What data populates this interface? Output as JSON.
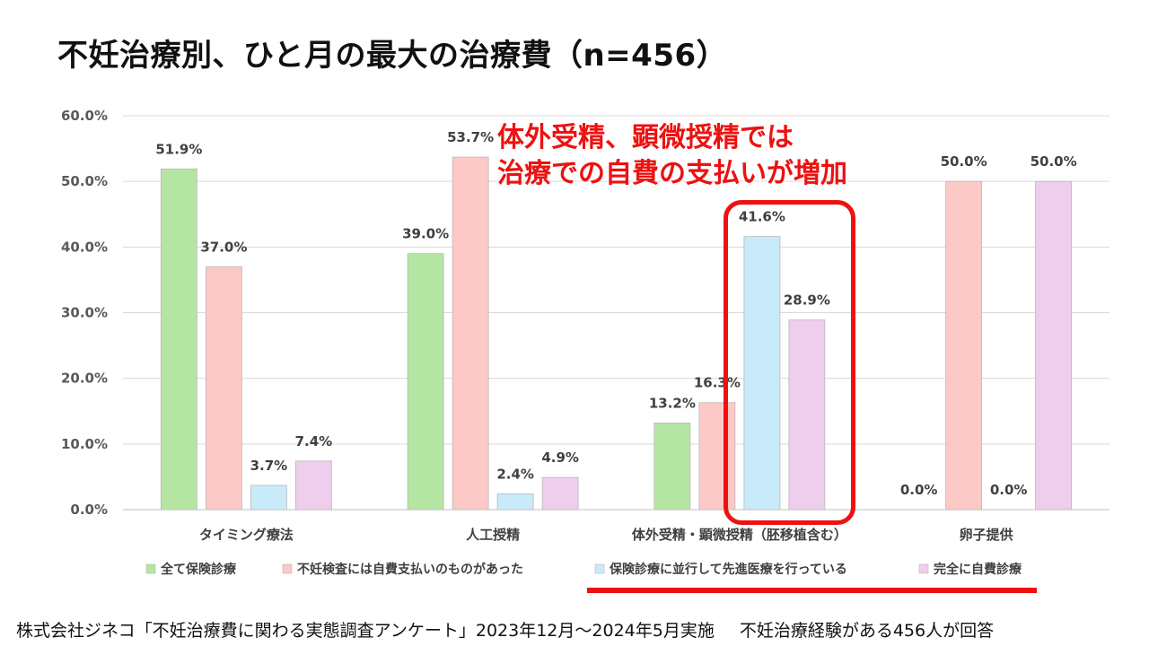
{
  "title": "不妊治療別、ひと月の最大の治療費（n=456）",
  "callout": {
    "line1": "体外受精、顕微授精では",
    "line2": "治療での自費の支払いが増加"
  },
  "footer": {
    "source": "株式会社ジネコ「不妊治療費に関わる実態調査アンケート」2023年12月～2024年5月実施",
    "note": "不妊治療経験がある456人が回答"
  },
  "chart_data": {
    "type": "bar",
    "categories": [
      "タイミング療法",
      "人工授精",
      "体外受精・顕微授精（胚移植含む）",
      "卵子提供"
    ],
    "series": [
      {
        "name": "全て保険診療",
        "values": [
          51.9,
          39.0,
          13.2,
          0.0
        ],
        "labels": [
          "51.9%",
          "39.0%",
          "13.2%",
          "0.0%"
        ],
        "color": "#b5e5a3"
      },
      {
        "name": "不妊検査には自費支払いのものがあった",
        "values": [
          37.0,
          53.7,
          16.3,
          50.0
        ],
        "labels": [
          "37.0%",
          "53.7%",
          "16.3%",
          "50.0%"
        ],
        "color": "#fcc9c7"
      },
      {
        "name": "保険診療に並行して先進医療を行っている",
        "values": [
          3.7,
          2.4,
          41.6,
          0.0
        ],
        "labels": [
          "3.7%",
          "2.4%",
          "41.6%",
          "0.0%"
        ],
        "color": "#c9ebf9"
      },
      {
        "name": "完全に自費診療",
        "values": [
          7.4,
          4.9,
          28.9,
          50.0
        ],
        "labels": [
          "7.4%",
          "4.9%",
          "28.9%",
          "50.0%"
        ],
        "color": "#efcdec"
      }
    ],
    "yticks": [
      "0.0%",
      "10.0%",
      "20.0%",
      "30.0%",
      "40.0%",
      "50.0%",
      "60.0%"
    ],
    "ylim": [
      0,
      60
    ],
    "grid": true,
    "legend_position": "bottom",
    "highlight_color": "#ee1111"
  }
}
